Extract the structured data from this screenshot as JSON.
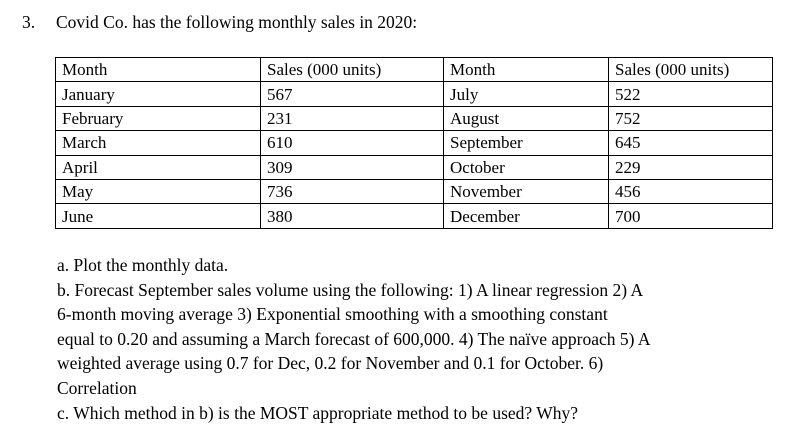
{
  "page": {
    "background": "#ffffff",
    "text_color": "#000000",
    "table_border_color": "#000000"
  },
  "question": {
    "number": "3.",
    "intro": "Covid Co. has the following monthly sales in 2020:"
  },
  "sales_table": {
    "headers": [
      "Month",
      "Sales (000 units)",
      "Month",
      "Sales (000 units)"
    ],
    "rows": [
      [
        "January",
        "567",
        "July",
        "522"
      ],
      [
        "February",
        "231",
        "August",
        "752"
      ],
      [
        "March",
        "610",
        "September",
        "645"
      ],
      [
        "April",
        "309",
        "October",
        "229"
      ],
      [
        "May",
        "736",
        "November",
        "456"
      ],
      [
        "June",
        "380",
        "December",
        "700"
      ]
    ],
    "monthly_sales_000_units": {
      "January": 567,
      "February": 231,
      "March": 610,
      "April": 309,
      "May": 736,
      "June": 380,
      "July": 522,
      "August": 752,
      "September": 645,
      "October": 229,
      "November": 456,
      "December": 700
    }
  },
  "parts": {
    "a": "a. Plot the monthly data.",
    "b_lines": [
      "b. Forecast September sales volume using the following: 1) A linear regression 2) A",
      "6-month moving average 3) Exponential smoothing with a smoothing constant",
      "equal to 0.20 and assuming a March forecast of 600,000. 4) The naïve approach 5) A",
      "weighted average using 0.7 for Dec, 0.2 for November and 0.1 for October. 6)",
      "Correlation"
    ],
    "c": "c. Which method in b) is the MOST appropriate method to be used? Why?"
  }
}
